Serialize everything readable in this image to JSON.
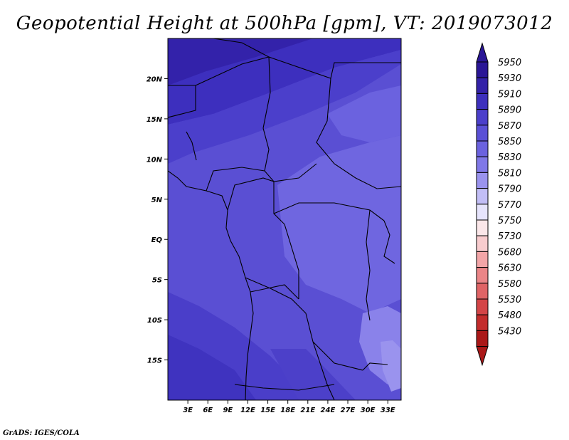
{
  "title": "Geopotential Height at 500hPa [gpm], VT: 2019073012",
  "footer": "GrADS: IGES/COLA",
  "map": {
    "region": "Central Africa",
    "lon_range": [
      0,
      35
    ],
    "lat_range": [
      -20,
      25
    ],
    "lon_ticks": [
      "3E",
      "6E",
      "9E",
      "12E",
      "15E",
      "18E",
      "21E",
      "24E",
      "27E",
      "30E",
      "33E"
    ],
    "lat_ticks": [
      "20N",
      "15N",
      "10N",
      "5N",
      "EQ",
      "5S",
      "10S",
      "15S"
    ],
    "base_color": "#5448cc"
  },
  "colorbar": {
    "levels": [
      "5950",
      "5930",
      "5910",
      "5890",
      "5870",
      "5850",
      "5830",
      "5810",
      "5790",
      "5770",
      "5750",
      "5730",
      "5680",
      "5630",
      "5580",
      "5530",
      "5480",
      "5430"
    ],
    "colors": [
      "#2a1696",
      "#3322a8",
      "#3d30bd",
      "#4b3fcb",
      "#5a50d6",
      "#6b62df",
      "#8078e7",
      "#9a93ee",
      "#c2bef6",
      "#e6e4fc",
      "#fbe7e9",
      "#f8ccce",
      "#f2a5a7",
      "#eb8587",
      "#e06466",
      "#d44547",
      "#c32c2c",
      "#aa1818"
    ],
    "top_arrow_color": "#2a1696",
    "bottom_arrow_color": "#aa1818"
  }
}
